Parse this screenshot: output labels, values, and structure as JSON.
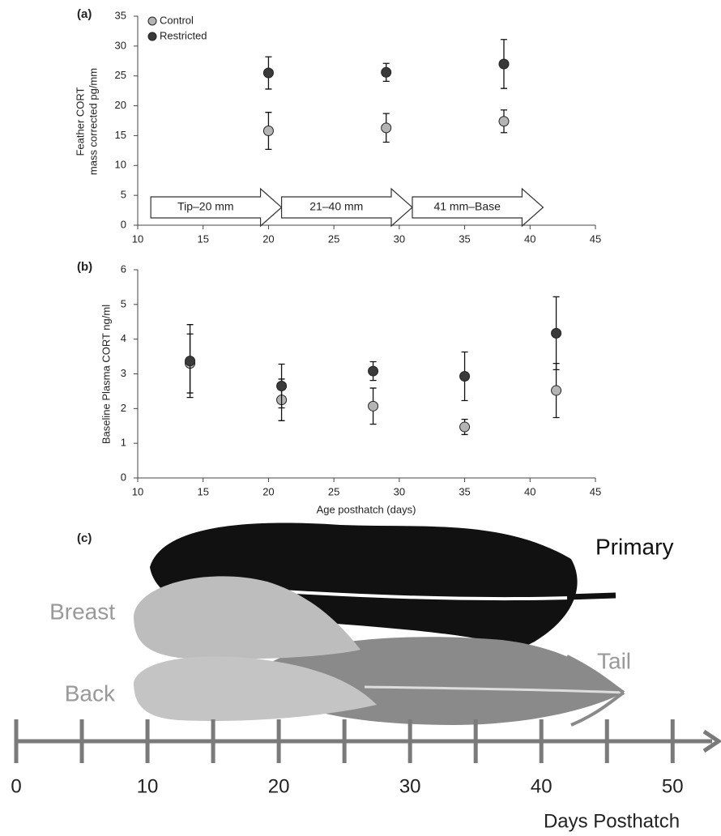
{
  "chart_data": [
    {
      "type": "scatter",
      "panel": "(a)",
      "ylabel": [
        "Feather CORT",
        "mass corrected pg/mm"
      ],
      "xlim": [
        10,
        45
      ],
      "xticks": [
        10,
        15,
        20,
        25,
        30,
        35,
        40,
        45
      ],
      "ylim": [
        0,
        35
      ],
      "yticks": [
        0,
        5,
        10,
        15,
        20,
        25,
        30,
        35
      ],
      "legend": "upper left",
      "series": [
        {
          "name": "Control",
          "color": "#b4b4b4",
          "x": [
            20,
            29,
            38
          ],
          "values": [
            15.8,
            16.3,
            17.4
          ],
          "errors": [
            3.1,
            2.4,
            1.9
          ]
        },
        {
          "name": "Restricted",
          "color": "#3a3a3a",
          "x": [
            20,
            29,
            38
          ],
          "values": [
            25.5,
            25.6,
            27.0
          ],
          "errors": [
            2.7,
            1.5,
            4.1
          ]
        }
      ],
      "arrows": [
        {
          "label": "Tip–20 mm",
          "x": [
            11,
            21
          ]
        },
        {
          "label": "21–40 mm",
          "x": [
            21,
            31
          ]
        },
        {
          "label": "41 mm–Base",
          "x": [
            31,
            41
          ]
        }
      ]
    },
    {
      "type": "scatter",
      "panel": "(b)",
      "xlabel": "Age posthatch (days)",
      "ylabel": [
        "Baseline Plasma CORT  ng/ml"
      ],
      "xlim": [
        10,
        45
      ],
      "xticks": [
        10,
        15,
        20,
        25,
        30,
        35,
        40,
        45
      ],
      "ylim": [
        0,
        6
      ],
      "yticks": [
        0,
        1,
        2,
        3,
        4,
        5,
        6
      ],
      "series": [
        {
          "color": "#b4b4b4",
          "x": [
            14,
            21,
            28,
            35,
            42
          ],
          "values": [
            3.3,
            2.25,
            2.07,
            1.47,
            2.52
          ],
          "errors": [
            0.85,
            0.6,
            0.52,
            0.22,
            0.78
          ]
        },
        {
          "color": "#3a3a3a",
          "x": [
            14,
            21,
            28,
            35,
            42
          ],
          "values": [
            3.37,
            2.65,
            3.08,
            2.93,
            4.17
          ],
          "errors": [
            1.05,
            0.63,
            0.27,
            0.7,
            1.05
          ]
        }
      ]
    },
    {
      "type": "timeline",
      "panel": "(c)",
      "xlabel": "Days Posthatch",
      "xlim": [
        0,
        53.5
      ],
      "xticks": [
        0,
        10,
        20,
        30,
        40,
        50
      ],
      "minor_xticks": [
        5,
        15,
        25,
        35,
        45
      ],
      "feathers": [
        "Primary",
        "Breast",
        "Back",
        "Tail"
      ]
    }
  ]
}
